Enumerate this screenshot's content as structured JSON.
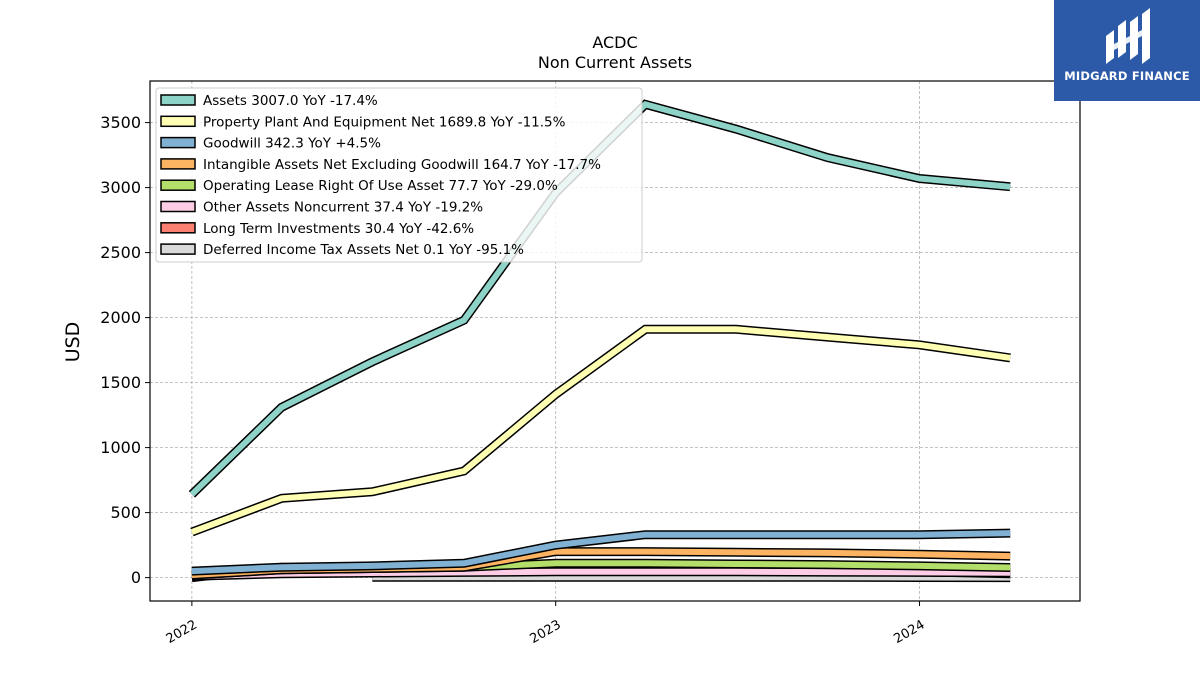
{
  "chart_data": {
    "type": "line",
    "title": "ACDC",
    "subtitle": "Non Current  Assets",
    "ylabel": "USD",
    "xlabel": "",
    "x": [
      "2022-01-01",
      "2022-04-01",
      "2022-07-01",
      "2022-10-01",
      "2023-01-01",
      "2023-04-01",
      "2023-07-01",
      "2023-10-01",
      "2024-01-01",
      "2024-04-01"
    ],
    "xticks": [
      "2022",
      "2023",
      "2024"
    ],
    "yticks": [
      0,
      500,
      1000,
      1500,
      2000,
      2500,
      3000,
      3500
    ],
    "ylim": [
      -180,
      3820
    ],
    "grid": true,
    "legend_position": "top-left",
    "series": [
      {
        "name": "Assets",
        "legend": "Assets  3007.0 YoY -17.4%",
        "color": "#8dd3c7",
        "values": [
          640,
          1310,
          1660,
          1980,
          2960,
          3640,
          3450,
          3230,
          3070,
          3007
        ]
      },
      {
        "name": "Property Plant And Equipment Net",
        "legend": "Property Plant And Equipment Net  1689.8 YoY -11.5%",
        "color": "#ffffb3",
        "values": [
          350,
          610,
          660,
          820,
          1410,
          1910,
          1910,
          1850,
          1790,
          1690
        ]
      },
      {
        "name": "Goodwill",
        "legend": "Goodwill  342.3 YoY +4.5%",
        "color": "#80b1d3",
        "values": [
          50,
          80,
          90,
          110,
          250,
          330,
          330,
          330,
          330,
          342
        ]
      },
      {
        "name": "Intangible Assets Net Excluding Goodwill",
        "legend": "Intangible Assets Net Excluding Goodwill  164.7 YoY -17.7%",
        "color": "#fdb462",
        "values": [
          20,
          60,
          70,
          80,
          200,
          200,
          195,
          190,
          180,
          165
        ]
      },
      {
        "name": "Operating Lease Right Of Use Asset",
        "legend": "Operating Lease Right Of Use Asset  77.7 YoY -29.0%",
        "color": "#b3de69",
        "values": [
          20,
          60,
          70,
          80,
          110,
          110,
          105,
          100,
          90,
          78
        ]
      },
      {
        "name": "Other Assets Noncurrent",
        "legend": "Other Assets Noncurrent  37.4 YoY -19.2%",
        "color": "#fccde5",
        "values": [
          10,
          30,
          35,
          40,
          45,
          45,
          45,
          42,
          40,
          37
        ]
      },
      {
        "name": "Long Term Investments",
        "legend": "Long Term Investments  30.4 YoY -42.6%",
        "color": "#fb8072",
        "values": [
          0,
          80,
          50,
          55,
          55,
          55,
          55,
          55,
          45,
          30
        ]
      },
      {
        "name": "Deferred Income Tax Assets Net",
        "legend": "Deferred Income Tax Assets Net  0.1 YoY -95.1%",
        "color": "#d9d9d9",
        "values": [
          null,
          null,
          2,
          2,
          2,
          2,
          2,
          2,
          1,
          0.1
        ]
      }
    ]
  },
  "logo": {
    "text": "MIDGARD FINANCE",
    "background": "#2d5aa8"
  }
}
